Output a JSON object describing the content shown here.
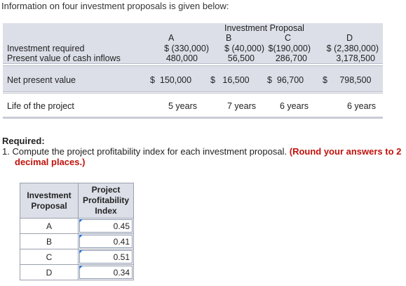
{
  "intro": "Information on four investment proposals is given below:",
  "table": {
    "header_title": "Investment Proposal",
    "columns": [
      "A",
      "B",
      "C",
      "D"
    ],
    "rows": {
      "investment_required": {
        "label": "Investment required",
        "values": [
          "$ (330,000)",
          "$  (40,000)",
          "$(190,000)",
          "$ (2,380,000)"
        ]
      },
      "pv_cash_inflows": {
        "label": "Present value of cash inflows",
        "values": [
          "480,000",
          "56,500",
          "286,700",
          "3,178,500"
        ]
      },
      "npv": {
        "label": "Net present value",
        "values": [
          "$  150,000",
          "$   16,500",
          "$  96,700",
          "$     798,500"
        ]
      },
      "life": {
        "label": "Life of the project",
        "values": [
          "5 years",
          "7 years",
          "6 years",
          "6 years"
        ]
      }
    }
  },
  "required": {
    "heading": "Required:",
    "q1_text": "1. Compute the project profitability index for each investment proposal.",
    "q1_note_line1": "(Round your answers to 2",
    "q1_note_line2": "decimal places.)"
  },
  "answer_table": {
    "header_col1": "Investment Proposal",
    "header_col2": "Project Profitability Index",
    "rows": [
      {
        "proposal": "A",
        "index": "0.45"
      },
      {
        "proposal": "B",
        "index": "0.41"
      },
      {
        "proposal": "C",
        "index": "0.51"
      },
      {
        "proposal": "D",
        "index": "0.34"
      }
    ]
  }
}
